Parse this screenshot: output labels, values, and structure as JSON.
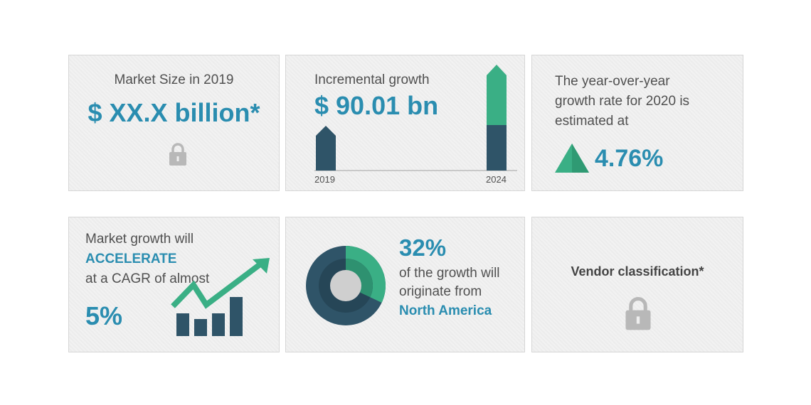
{
  "market_size": {
    "label": "Market Size in 2019",
    "value": "$ XX.X billion*",
    "icon": "lock-icon"
  },
  "incremental": {
    "label": "Incremental growth",
    "value": "$ 90.01 bn",
    "year_start": "2019",
    "year_end": "2024"
  },
  "yoy": {
    "line1": "The year-over-year",
    "line2": "growth rate for 2020 is",
    "line3": "estimated at",
    "value": "4.76%",
    "icon": "triangle-up-icon"
  },
  "cagr": {
    "line1": "Market growth will",
    "highlight": "ACCELERATE",
    "line2": "at a CAGR of almost",
    "value": "5%",
    "icon": "growth-chart-icon"
  },
  "region": {
    "value": "32%",
    "line1": "of the growth will",
    "line2": "originate from",
    "region": "North America",
    "share_percent": 32
  },
  "vendor": {
    "label": "Vendor classification*",
    "icon": "lock-icon"
  },
  "colors": {
    "teal": "#2a8db0",
    "dark": "#2f5468",
    "green": "#3aaf85"
  }
}
